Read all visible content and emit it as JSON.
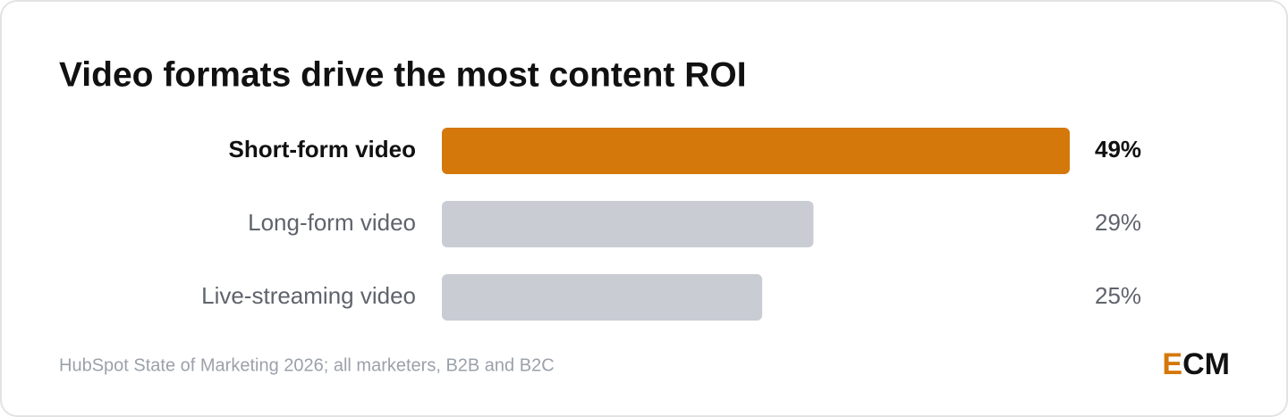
{
  "chart_data": {
    "type": "bar",
    "title": "Video formats drive the most content ROI",
    "categories": [
      "Short-form video",
      "Long-form video",
      "Live-streaming video"
    ],
    "values": [
      49,
      29,
      25
    ],
    "value_labels": [
      "49%",
      "29%",
      "25%"
    ],
    "color": "#d4780b",
    "colors": [
      "#d4780b",
      "#c9ccd3",
      "#c9ccd3"
    ],
    "source": "HubSpot State of Marketing 2026; all marketers, B2B and B2C",
    "brand": [
      "E",
      "CM"
    ]
  }
}
